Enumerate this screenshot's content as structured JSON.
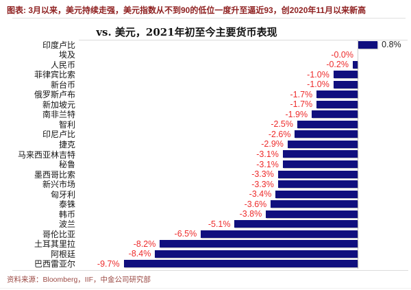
{
  "header": {
    "caption": "图表: 3月以来，美元持续走强，美元指数从不到90的低位一度升至逼近93，创2020年11月以来新高"
  },
  "chart_data": {
    "type": "bar",
    "orientation": "horizontal",
    "title": "vs. 美元，2021年初至今主要货币表现",
    "categories": [
      "印度卢比",
      "埃及",
      "人民币",
      "菲律宾比索",
      "新台币",
      "俄罗斯卢布",
      "新加坡元",
      "南非兰特",
      "智利",
      "印尼卢比",
      "捷克",
      "马来西亚林吉特",
      "秘鲁",
      "墨西哥比索",
      "新兴市场",
      "匈牙利",
      "泰铢",
      "韩币",
      "波兰",
      "哥伦比亚",
      "土耳其里拉",
      "阿根廷",
      "巴西雷亚尔"
    ],
    "values": [
      0.8,
      -0.0,
      -0.2,
      -1.0,
      -1.0,
      -1.7,
      -1.7,
      -1.9,
      -2.5,
      -2.6,
      -2.9,
      -3.1,
      -3.1,
      -3.3,
      -3.3,
      -3.4,
      -3.6,
      -3.8,
      -5.1,
      -6.5,
      -8.2,
      -8.4,
      -9.7
    ],
    "labels": [
      "0.8%",
      "-0.0%",
      "-0.2%",
      "-1.0%",
      "-1.0%",
      "-1.7%",
      "-1.7%",
      "-1.9%",
      "-2.5%",
      "-2.6%",
      "-2.9%",
      "-3.1%",
      "-3.1%",
      "-3.3%",
      "-3.3%",
      "-3.4%",
      "-3.6%",
      "-3.8%",
      "-5.1%",
      "-6.5%",
      "-8.2%",
      "-8.4%",
      "-9.7%"
    ],
    "unit": "%",
    "xlim": [
      -11.5,
      2.1
    ],
    "grid": false,
    "legend": "none",
    "bar_color": "#100F7E",
    "negative_label_color": "#ED2B2B",
    "positive_label_color": "#202020"
  },
  "footer": {
    "source": "资料来源：Bloomberg，IIF，中金公司研究部"
  }
}
